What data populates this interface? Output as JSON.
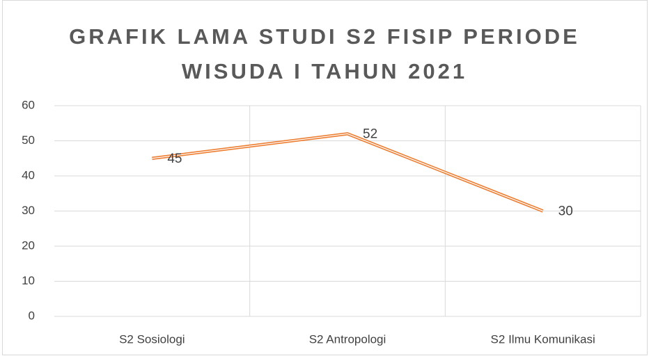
{
  "chart_data": {
    "type": "line",
    "title": "GRAFIK LAMA STUDI S2 FISIP PERIODE WISUDA I TAHUN 2021",
    "categories": [
      "S2 Sosiologi",
      "S2 Antropologi",
      "S2 Ilmu Komunikasi"
    ],
    "values": [
      45,
      52,
      30
    ],
    "color": "#ed7d31",
    "ylim": [
      0,
      60
    ],
    "yticks": [
      0,
      10,
      20,
      30,
      40,
      50,
      60
    ],
    "grid": true,
    "data_labels": true
  }
}
